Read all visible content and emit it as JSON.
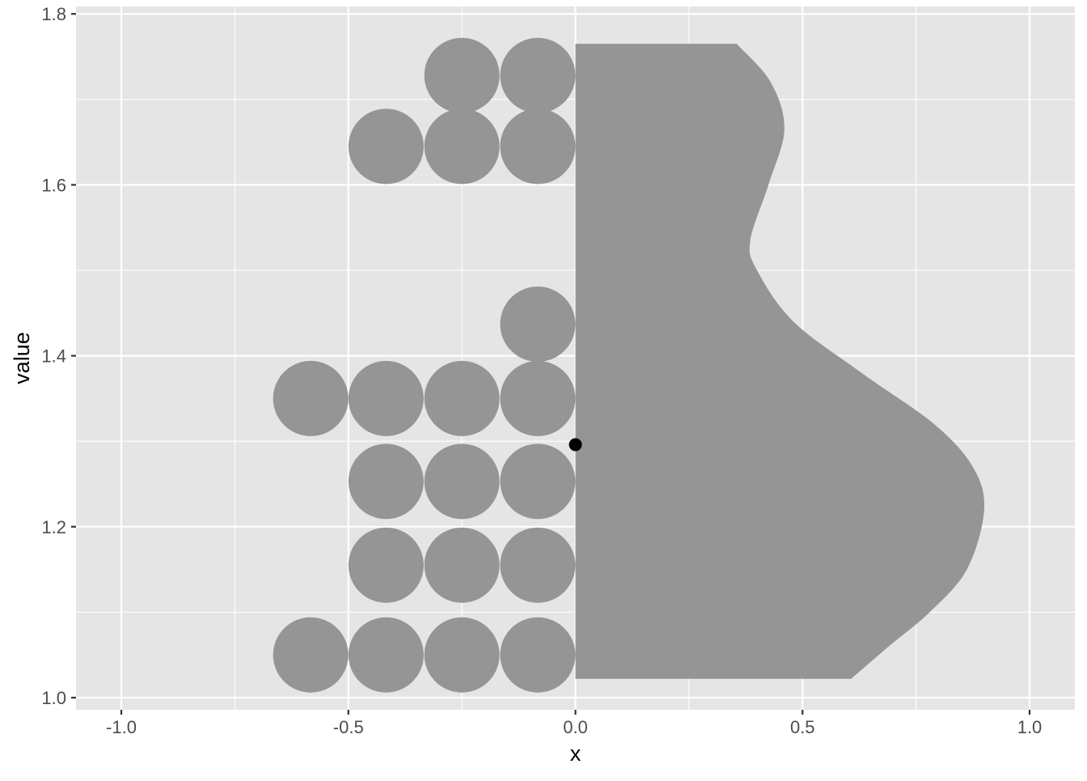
{
  "chart_data": {
    "type": "half-violin-dotplot",
    "xlabel": "x",
    "ylabel": "value",
    "xlim": [
      -1.1,
      1.1
    ],
    "ylim": [
      0.985,
      1.8
    ],
    "x_ticks": [
      -1.0,
      -0.5,
      0.0,
      0.5,
      1.0
    ],
    "x_tick_labels": [
      "-1.0",
      "-0.5",
      "0.0",
      "0.5",
      "1.0"
    ],
    "y_ticks": [
      1.0,
      1.2,
      1.4,
      1.6,
      1.8
    ],
    "y_tick_labels": [
      "1.0",
      "1.2",
      "1.4",
      "1.6",
      "1.8"
    ],
    "grid": true,
    "dot_bins": [
      {
        "value": 1.05,
        "count": 4
      },
      {
        "value": 1.155,
        "count": 3
      },
      {
        "value": 1.253,
        "count": 3
      },
      {
        "value": 1.35,
        "count": 4
      },
      {
        "value": 1.437,
        "count": 1
      },
      {
        "value": 1.645,
        "count": 3
      },
      {
        "value": 1.728,
        "count": 2
      }
    ],
    "dot_column_x": [
      -0.083,
      -0.25,
      -0.417,
      -0.583
    ],
    "violin": {
      "x_origin": 0.0,
      "y_range": [
        1.022,
        1.765
      ],
      "profile": [
        {
          "value": 1.022,
          "width": 0.607
        },
        {
          "value": 1.06,
          "width": 0.69
        },
        {
          "value": 1.1,
          "width": 0.78
        },
        {
          "value": 1.15,
          "width": 0.862
        },
        {
          "value": 1.22,
          "width": 0.9
        },
        {
          "value": 1.27,
          "width": 0.875
        },
        {
          "value": 1.32,
          "width": 0.79
        },
        {
          "value": 1.38,
          "width": 0.63
        },
        {
          "value": 1.44,
          "width": 0.48
        },
        {
          "value": 1.5,
          "width": 0.4
        },
        {
          "value": 1.535,
          "width": 0.385
        },
        {
          "value": 1.6,
          "width": 0.425
        },
        {
          "value": 1.665,
          "width": 0.46
        },
        {
          "value": 1.72,
          "width": 0.43
        },
        {
          "value": 1.765,
          "width": 0.355
        }
      ]
    },
    "mean_point": {
      "x": 0.0,
      "value": 1.296
    },
    "colors": {
      "panel": "#e5e5e5",
      "grid": "#ffffff",
      "fill": "#959595",
      "point": "#000000",
      "tick": "#333333"
    }
  }
}
